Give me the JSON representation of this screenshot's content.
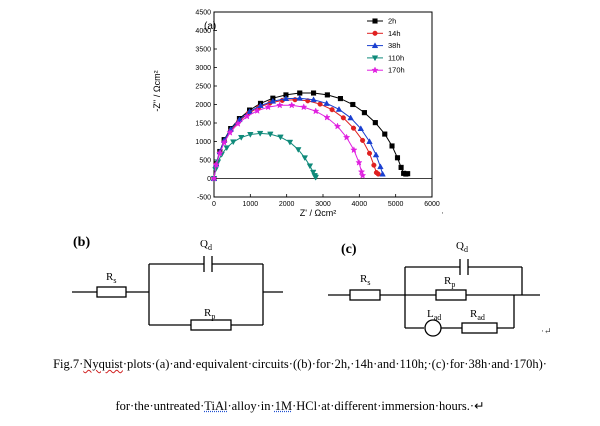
{
  "chart_data": {
    "type": "scatter",
    "panel_label": "(a)",
    "xlabel": "Z' / Ωcm²",
    "ylabel": "-Z'' / Ωcm²",
    "xlim": [
      0,
      6000
    ],
    "ylim": [
      -500,
      4500
    ],
    "x_ticks": [
      0,
      1000,
      2000,
      3000,
      4000,
      5000,
      6000
    ],
    "y_ticks": [
      -500,
      0,
      500,
      1000,
      1500,
      2000,
      2500,
      3000,
      3500,
      4000,
      4500
    ],
    "legend_position": "top-right",
    "series": [
      {
        "name": "2h",
        "color": "#000000",
        "marker": "square",
        "x": [
          0,
          60,
          160,
          280,
          460,
          700,
          980,
          1280,
          1620,
          1980,
          2360,
          2740,
          3120,
          3480,
          3820,
          4140,
          4440,
          4700,
          4900,
          5050,
          5150,
          5220,
          5280,
          5330
        ],
        "y": [
          0,
          400,
          730,
          1050,
          1350,
          1620,
          1850,
          2030,
          2170,
          2260,
          2310,
          2310,
          2260,
          2160,
          2000,
          1780,
          1510,
          1200,
          880,
          560,
          300,
          140,
          120,
          130
        ]
      },
      {
        "name": "14h",
        "color": "#e02020",
        "marker": "circle",
        "x": [
          0,
          60,
          160,
          280,
          450,
          680,
          940,
          1230,
          1540,
          1880,
          2230,
          2580,
          2920,
          3250,
          3560,
          3840,
          4090,
          4280,
          4400,
          4470,
          4520
        ],
        "y": [
          0,
          380,
          700,
          1000,
          1290,
          1540,
          1760,
          1920,
          2040,
          2110,
          2130,
          2100,
          2010,
          1860,
          1640,
          1360,
          1030,
          680,
          360,
          160,
          120
        ]
      },
      {
        "name": "38h",
        "color": "#1a3fd0",
        "marker": "triangle-up",
        "x": [
          0,
          60,
          160,
          280,
          460,
          700,
          980,
          1280,
          1620,
          1980,
          2360,
          2740,
          3100,
          3440,
          3760,
          4040,
          4280,
          4460,
          4580,
          4640
        ],
        "y": [
          0,
          390,
          720,
          1030,
          1330,
          1590,
          1810,
          1970,
          2090,
          2160,
          2170,
          2130,
          2030,
          1870,
          1640,
          1350,
          1000,
          640,
          320,
          120
        ]
      },
      {
        "name": "110h",
        "color": "#0f8a7a",
        "marker": "triangle-down",
        "x": [
          0,
          40,
          110,
          210,
          350,
          530,
          750,
          1000,
          1270,
          1550,
          1830,
          2090,
          2320,
          2500,
          2640,
          2730,
          2770,
          2790,
          2800
        ],
        "y": [
          0,
          240,
          450,
          650,
          830,
          990,
          1110,
          1190,
          1220,
          1200,
          1120,
          980,
          780,
          560,
          340,
          170,
          80,
          40,
          30
        ]
      },
      {
        "name": "170h",
        "color": "#e020e0",
        "marker": "star",
        "x": [
          0,
          60,
          160,
          280,
          440,
          660,
          910,
          1190,
          1490,
          1810,
          2140,
          2470,
          2800,
          3110,
          3400,
          3650,
          3850,
          3990,
          4060,
          4090
        ],
        "y": [
          0,
          370,
          680,
          970,
          1240,
          1480,
          1680,
          1830,
          1930,
          1980,
          1980,
          1930,
          1820,
          1650,
          1410,
          1110,
          770,
          430,
          180,
          80
        ]
      }
    ]
  },
  "circuits": {
    "b": {
      "label": "(b)",
      "rs": "R",
      "rs_sub": "s",
      "qd": "Q",
      "qd_sub": "d",
      "rp": "R",
      "rp_sub": "p"
    },
    "c": {
      "label": "(c)",
      "rs": "R",
      "rs_sub": "s",
      "qd": "Q",
      "qd_sub": "d",
      "rp": "R",
      "rp_sub": "p",
      "lad": "L",
      "lad_sub": "ad",
      "rad": "R",
      "rad_sub": "ad"
    }
  },
  "marks": {
    "return_1": "·↵",
    "return_2": "·↵",
    "dot": "·"
  },
  "caption": {
    "line1_a": "Fig.7·",
    "line1_b": "Nyquist",
    "line1_c": "·plots·(a)·and·equivalent·circuits·((b)·for·2h,·14h·and·110h;·(c)·for·38h·and·170h)·",
    "line2_a": "for·the·untreated·",
    "line2_b": "TiAl",
    "line2_c": "·alloy·in·",
    "line2_d": "1M",
    "line2_e": "·HCl·at·different·immersion·hours.·↵"
  }
}
